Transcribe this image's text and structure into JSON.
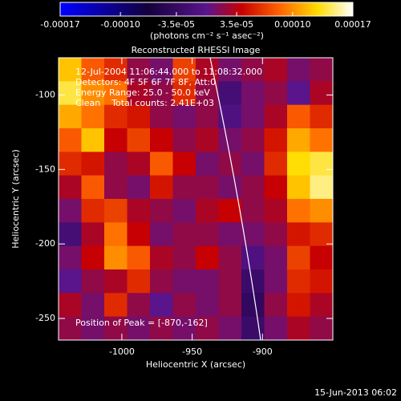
{
  "chart_data": {
    "type": "heatmap",
    "title": "Reconstructed RHESSI Image",
    "x_label": "Heliocentric X (arcsec)",
    "y_label": "Heliocentric Y (arcsec)",
    "xlim": [
      -1045,
      -850
    ],
    "ylim": [
      -264.5,
      -75
    ],
    "xticks": [
      -1000,
      -950,
      -900
    ],
    "yticks": [
      -100,
      -150,
      -200,
      -250
    ],
    "colorbar": {
      "zlim": [
        -0.00017,
        0.00017
      ],
      "ticks": [
        {
          "value": -0.00017,
          "label": "-0.00017"
        },
        {
          "value": -0.0001,
          "label": "-0.00010"
        },
        {
          "value": -3.5e-05,
          "label": "-3.5e-05"
        },
        {
          "value": 3.5e-05,
          "label": "3.5e-05"
        },
        {
          "value": 0.0001,
          "label": "0.00010"
        },
        {
          "value": 0.00017,
          "label": "0.00017"
        }
      ],
      "label": "(photons cm⁻² s⁻¹ asec⁻²)"
    },
    "annotations": [
      "12-Jul-2004 11:06:44.000 to 11:08:32.000",
      "Detectors: 4F 5F 6F 7F 8F, Att:0",
      "Energy Range: 25.0 - 50.0 keV",
      "Clean    Total counts: 2.41E+03"
    ],
    "peak_label": "Position of Peak = [-870,-162]",
    "timestamp": "15-Jun-2013 06:02",
    "z": [
      [
        0.00012,
        8e-05,
        6e-05,
        2e-05,
        1e-05,
        7e-05,
        3e-05,
        1e-05,
        2e-05,
        3e-05,
        1e-05,
        2e-05
      ],
      [
        0.00014,
        0.0001,
        9e-05,
        3e-05,
        2e-05,
        6e-05,
        2e-05,
        -2e-05,
        1e-05,
        2e-05,
        0,
        3e-05
      ],
      [
        0.00011,
        9e-05,
        6e-05,
        5e-05,
        2e-05,
        1e-05,
        2e-05,
        -1e-05,
        1e-05,
        3e-05,
        8e-05,
        6e-05
      ],
      [
        8e-05,
        0.00012,
        4e-05,
        7e-05,
        4e-05,
        2e-05,
        3e-05,
        1e-05,
        2e-05,
        5e-05,
        0.00011,
        9e-05
      ],
      [
        6e-05,
        5e-05,
        2e-05,
        3e-05,
        8e-05,
        4e-05,
        1e-05,
        2e-05,
        1e-05,
        6e-05,
        0.00013,
        0.00014
      ],
      [
        3e-05,
        8e-05,
        2e-05,
        1e-05,
        5e-05,
        2e-05,
        2e-05,
        1e-05,
        2e-05,
        4e-05,
        0.00012,
        0.00015
      ],
      [
        1e-05,
        6e-05,
        7e-05,
        3e-05,
        2e-05,
        1e-05,
        3e-05,
        4e-05,
        2e-05,
        3e-05,
        9e-05,
        0.0001
      ],
      [
        -2e-05,
        3e-05,
        9e-05,
        4e-05,
        1e-05,
        2e-05,
        2e-05,
        1e-05,
        1e-05,
        2e-05,
        5e-05,
        6e-05
      ],
      [
        1e-05,
        4e-05,
        0.0001,
        8e-05,
        3e-05,
        2e-05,
        4e-05,
        2e-05,
        -1e-05,
        1e-05,
        7e-05,
        4e-05
      ],
      [
        0,
        2e-05,
        3e-05,
        6e-05,
        2e-05,
        1e-05,
        1e-05,
        2e-05,
        -3e-05,
        1e-05,
        6e-05,
        5e-05
      ],
      [
        3e-05,
        1e-05,
        6e-05,
        2e-05,
        0,
        2e-05,
        1e-05,
        2e-05,
        -4e-05,
        2e-05,
        5e-05,
        3e-05
      ],
      [
        2e-05,
        1e-05,
        2e-05,
        1e-05,
        2e-05,
        1e-05,
        2e-05,
        1e-05,
        -3e-05,
        1e-05,
        3e-05,
        2e-05
      ]
    ]
  }
}
